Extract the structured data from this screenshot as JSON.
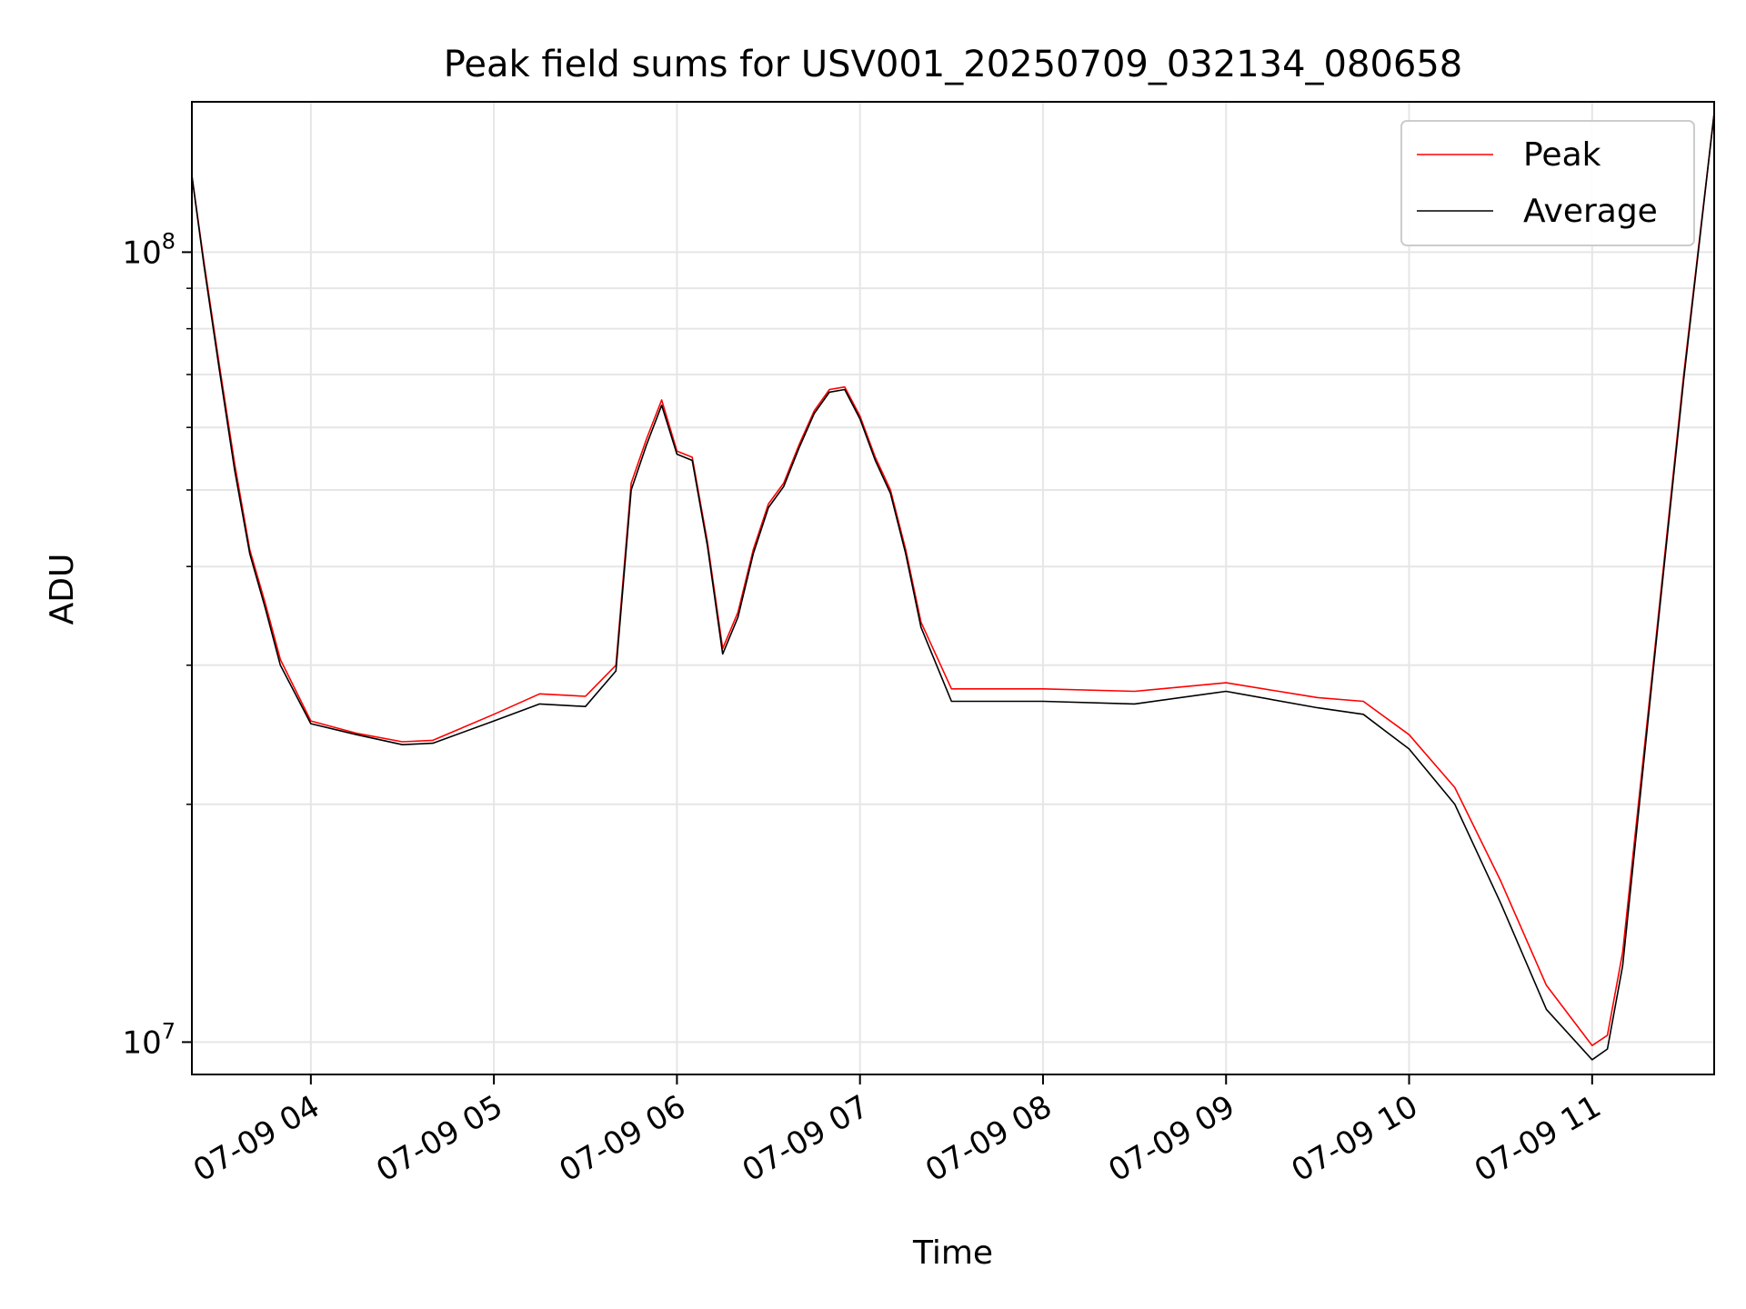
{
  "chart_data": {
    "type": "line",
    "title": "Peak field sums for USV001_20250709_032134_080658",
    "xlabel": "Time",
    "ylabel": "ADU",
    "yscale": "log",
    "grid": true,
    "legend_position": "top-right",
    "xlim": [
      "2025-07-09 03:21",
      "2025-07-09 11:40"
    ],
    "ylim": [
      9100000,
      155000000
    ],
    "x_ticks": [
      {
        "value": "2025-07-09 04:00",
        "label": "07-09 04"
      },
      {
        "value": "2025-07-09 05:00",
        "label": "07-09 05"
      },
      {
        "value": "2025-07-09 06:00",
        "label": "07-09 06"
      },
      {
        "value": "2025-07-09 07:00",
        "label": "07-09 07"
      },
      {
        "value": "2025-07-09 08:00",
        "label": "07-09 08"
      },
      {
        "value": "2025-07-09 09:00",
        "label": "07-09 09"
      },
      {
        "value": "2025-07-09 10:00",
        "label": "07-09 10"
      },
      {
        "value": "2025-07-09 11:00",
        "label": "07-09 11"
      }
    ],
    "y_ticks": [
      {
        "value": 10000000,
        "base": "10",
        "exp": "7"
      },
      {
        "value": 100000000,
        "base": "10",
        "exp": "8"
      }
    ],
    "series": [
      {
        "name": "Peak",
        "color": "#ff0000",
        "x": [
          "2025-07-09 03:21",
          "2025-07-09 03:25",
          "2025-07-09 03:30",
          "2025-07-09 03:35",
          "2025-07-09 03:40",
          "2025-07-09 03:45",
          "2025-07-09 03:50",
          "2025-07-09 04:00",
          "2025-07-09 04:15",
          "2025-07-09 04:30",
          "2025-07-09 04:40",
          "2025-07-09 05:00",
          "2025-07-09 05:15",
          "2025-07-09 05:30",
          "2025-07-09 05:40",
          "2025-07-09 05:45",
          "2025-07-09 05:50",
          "2025-07-09 05:55",
          "2025-07-09 06:00",
          "2025-07-09 06:05",
          "2025-07-09 06:10",
          "2025-07-09 06:15",
          "2025-07-09 06:20",
          "2025-07-09 06:25",
          "2025-07-09 06:30",
          "2025-07-09 06:35",
          "2025-07-09 06:40",
          "2025-07-09 06:45",
          "2025-07-09 06:50",
          "2025-07-09 06:55",
          "2025-07-09 07:00",
          "2025-07-09 07:05",
          "2025-07-09 07:10",
          "2025-07-09 07:15",
          "2025-07-09 07:20",
          "2025-07-09 07:30",
          "2025-07-09 08:00",
          "2025-07-09 08:30",
          "2025-07-09 09:00",
          "2025-07-09 09:30",
          "2025-07-09 09:45",
          "2025-07-09 10:00",
          "2025-07-09 10:15",
          "2025-07-09 10:30",
          "2025-07-09 10:45",
          "2025-07-09 11:00",
          "2025-07-09 11:05",
          "2025-07-09 11:10",
          "2025-07-09 11:20",
          "2025-07-09 11:30",
          "2025-07-09 11:40"
        ],
        "values": [
          125000000,
          97000000,
          72000000,
          54000000,
          42000000,
          36000000,
          30500000,
          25500000,
          24600000,
          24000000,
          24100000,
          26000000,
          27600000,
          27400000,
          30000000,
          51000000,
          58000000,
          65000000,
          56000000,
          55000000,
          43000000,
          31500000,
          35000000,
          42000000,
          48000000,
          51000000,
          57000000,
          63000000,
          67000000,
          67500000,
          62000000,
          55000000,
          50000000,
          42000000,
          34000000,
          28000000,
          28000000,
          27800000,
          28500000,
          27300000,
          27000000,
          24500000,
          21000000,
          16000000,
          11800000,
          9900000,
          10200000,
          13000000,
          30000000,
          70000000,
          150000000
        ]
      },
      {
        "name": "Average",
        "color": "#000000",
        "x": [
          "2025-07-09 03:21",
          "2025-07-09 03:25",
          "2025-07-09 03:30",
          "2025-07-09 03:35",
          "2025-07-09 03:40",
          "2025-07-09 03:45",
          "2025-07-09 03:50",
          "2025-07-09 04:00",
          "2025-07-09 04:15",
          "2025-07-09 04:30",
          "2025-07-09 04:40",
          "2025-07-09 05:00",
          "2025-07-09 05:15",
          "2025-07-09 05:30",
          "2025-07-09 05:40",
          "2025-07-09 05:45",
          "2025-07-09 05:50",
          "2025-07-09 05:55",
          "2025-07-09 06:00",
          "2025-07-09 06:05",
          "2025-07-09 06:10",
          "2025-07-09 06:15",
          "2025-07-09 06:20",
          "2025-07-09 06:25",
          "2025-07-09 06:30",
          "2025-07-09 06:35",
          "2025-07-09 06:40",
          "2025-07-09 06:45",
          "2025-07-09 06:50",
          "2025-07-09 06:55",
          "2025-07-09 07:00",
          "2025-07-09 07:05",
          "2025-07-09 07:10",
          "2025-07-09 07:15",
          "2025-07-09 07:20",
          "2025-07-09 07:30",
          "2025-07-09 08:00",
          "2025-07-09 08:30",
          "2025-07-09 09:00",
          "2025-07-09 09:30",
          "2025-07-09 09:45",
          "2025-07-09 10:00",
          "2025-07-09 10:15",
          "2025-07-09 10:30",
          "2025-07-09 10:45",
          "2025-07-09 11:00",
          "2025-07-09 11:05",
          "2025-07-09 11:10",
          "2025-07-09 11:20",
          "2025-07-09 11:30",
          "2025-07-09 11:40"
        ],
        "values": [
          125000000,
          96000000,
          71000000,
          53000000,
          41500000,
          35500000,
          30000000,
          25300000,
          24500000,
          23800000,
          23900000,
          25500000,
          26800000,
          26600000,
          29500000,
          50000000,
          57000000,
          64000000,
          55500000,
          54500000,
          42500000,
          31000000,
          34500000,
          41500000,
          47500000,
          50500000,
          56500000,
          62500000,
          66500000,
          67000000,
          61500000,
          54500000,
          49500000,
          41500000,
          33500000,
          27000000,
          27000000,
          26800000,
          27800000,
          26500000,
          26000000,
          23500000,
          20000000,
          15000000,
          11000000,
          9500000,
          9800000,
          12500000,
          29500000,
          69000000,
          150000000
        ]
      }
    ]
  }
}
